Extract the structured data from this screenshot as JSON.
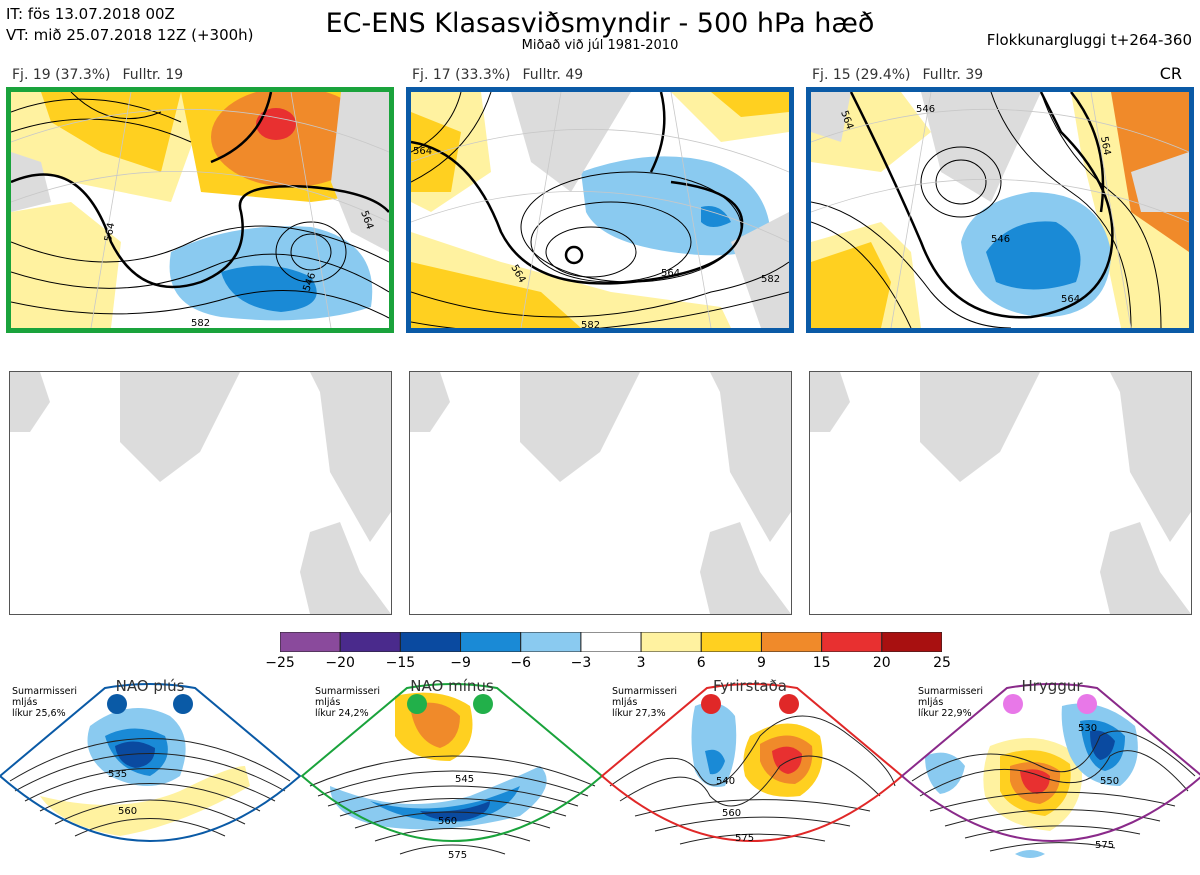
{
  "header": {
    "it_line": "IT: fös 13.07.2018 00Z",
    "vt_line": "VT: mið 25.07.2018 12Z  (+300h)",
    "title": "EC-ENS Klasasviðsmyndir - 500 hPa hæð",
    "subtitle": "Miðað við júl 1981-2010",
    "window": "Flokkunargluggi t+264-360",
    "cr": "CR"
  },
  "clusters": [
    {
      "label": "Fj. 19 (37.3%)",
      "rep": "Fulltr. 19",
      "border_color": "#1aa33c",
      "contours": [
        "564",
        "546",
        "582",
        "564"
      ]
    },
    {
      "label": "Fj. 17 (33.3%)",
      "rep": "Fulltr. 49",
      "border_color": "#0a5aa6",
      "contours": [
        "564",
        "564",
        "582",
        "564",
        "582"
      ]
    },
    {
      "label": "Fj. 15 (29.4%)",
      "rep": "Fulltr. 39",
      "border_color": "#0a5aa6",
      "contours": [
        "564",
        "546",
        "546",
        "564",
        "564"
      ]
    }
  ],
  "colorbar": {
    "ticks": [
      "−25",
      "−20",
      "−15",
      "−9",
      "−6",
      "−3",
      "3",
      "6",
      "9",
      "15",
      "20",
      "25"
    ],
    "colors": [
      "#8a4a9c",
      "#4a2a8c",
      "#0a4aa0",
      "#1a8ad6",
      "#8acaf0",
      "#ffffff",
      "#fff2a0",
      "#ffd020",
      "#f08a2a",
      "#e83030",
      "#a81010"
    ]
  },
  "regimes": [
    {
      "name": "NAO plús",
      "info": [
        "Sumarmisseri",
        "mljás",
        "líkur 25,6%"
      ],
      "border_color": "#0a5aa6",
      "dot_color": "#0a5aa6",
      "contours": [
        "535",
        "560"
      ]
    },
    {
      "name": "NAO mínus",
      "info": [
        "Sumarmisseri",
        "mljás",
        "líkur 24,2%"
      ],
      "border_color": "#1aa33c",
      "dot_color": "#22b04a",
      "contours": [
        "545",
        "560",
        "575"
      ]
    },
    {
      "name": "Fyrirstaða",
      "info": [
        "Sumarmisseri",
        "mljás",
        "líkur 27,3%"
      ],
      "border_color": "#e02828",
      "dot_color": "#e02828",
      "contours": [
        "540",
        "560",
        "575"
      ]
    },
    {
      "name": "Hryggur",
      "info": [
        "Sumarmisseri",
        "mljás",
        "líkur 22,9%"
      ],
      "border_color": "#8a2a8a",
      "dot_color": "#e878e8",
      "contours": [
        "530",
        "550",
        "575"
      ]
    }
  ]
}
